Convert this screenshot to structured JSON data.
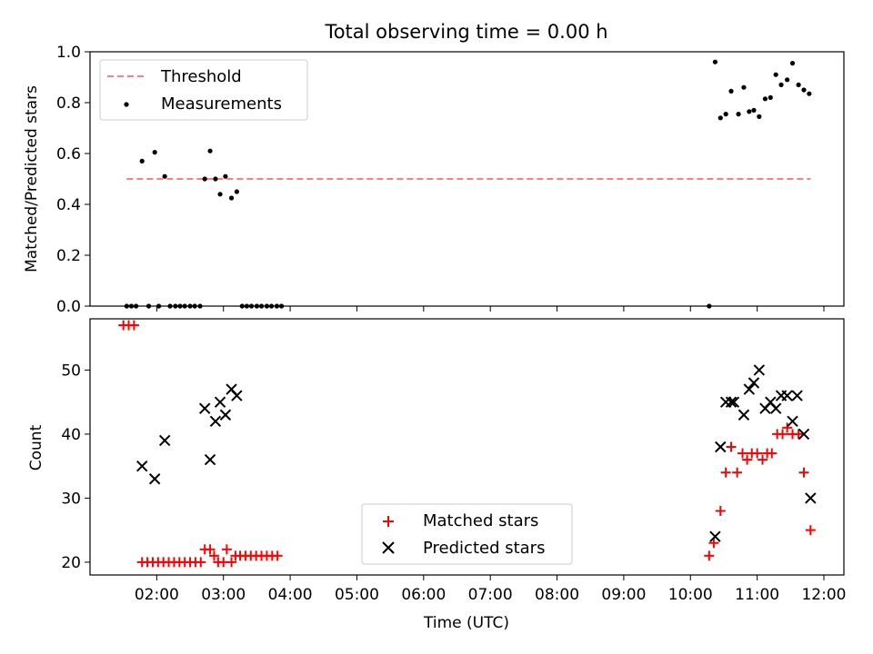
{
  "chart_data": [
    {
      "type": "scatter",
      "title": "Total observing time = 0.00 h",
      "ylabel": "Matched/Predicted stars",
      "ylim": [
        0,
        1
      ],
      "yticks": [
        "0.0",
        "0.2",
        "0.4",
        "0.6",
        "0.8",
        "1.0"
      ],
      "xlim_hours": [
        1.0,
        12.3
      ],
      "legend_position": "upper-left",
      "threshold": {
        "name": "Threshold",
        "value": 0.5,
        "x_start": 1.55,
        "x_end": 11.8,
        "color": "#ff7f7f"
      },
      "measurements": {
        "name": "Measurements",
        "color": "#000000",
        "points": [
          [
            1.55,
            0.0
          ],
          [
            1.62,
            0.0
          ],
          [
            1.69,
            0.0
          ],
          [
            1.78,
            0.57
          ],
          [
            1.88,
            0.0
          ],
          [
            1.97,
            0.605
          ],
          [
            2.03,
            0.0
          ],
          [
            2.12,
            0.51
          ],
          [
            2.2,
            0.0
          ],
          [
            2.28,
            0.0
          ],
          [
            2.35,
            0.0
          ],
          [
            2.42,
            0.0
          ],
          [
            2.5,
            0.0
          ],
          [
            2.57,
            0.0
          ],
          [
            2.65,
            0.0
          ],
          [
            2.72,
            0.5
          ],
          [
            2.8,
            0.61
          ],
          [
            2.88,
            0.5
          ],
          [
            2.95,
            0.44
          ],
          [
            3.03,
            0.51
          ],
          [
            3.12,
            0.425
          ],
          [
            3.2,
            0.45
          ],
          [
            3.28,
            0.0
          ],
          [
            3.35,
            0.0
          ],
          [
            3.42,
            0.0
          ],
          [
            3.5,
            0.0
          ],
          [
            3.57,
            0.0
          ],
          [
            3.65,
            0.0
          ],
          [
            3.72,
            0.0
          ],
          [
            3.8,
            0.0
          ],
          [
            3.87,
            0.0
          ],
          [
            10.28,
            0.0
          ],
          [
            10.37,
            0.96
          ],
          [
            10.45,
            0.74
          ],
          [
            10.53,
            0.755
          ],
          [
            10.61,
            0.845
          ],
          [
            10.72,
            0.755
          ],
          [
            10.8,
            0.86
          ],
          [
            10.88,
            0.765
          ],
          [
            10.95,
            0.77
          ],
          [
            11.03,
            0.745
          ],
          [
            11.12,
            0.815
          ],
          [
            11.2,
            0.82
          ],
          [
            11.28,
            0.91
          ],
          [
            11.36,
            0.87
          ],
          [
            11.45,
            0.89
          ],
          [
            11.53,
            0.955
          ],
          [
            11.62,
            0.87
          ],
          [
            11.7,
            0.85
          ],
          [
            11.78,
            0.835
          ]
        ]
      }
    },
    {
      "type": "scatter",
      "xlabel": "Time (UTC)",
      "ylabel": "Count",
      "ylim": [
        18,
        58
      ],
      "yticks": [
        "20",
        "30",
        "40",
        "50"
      ],
      "xlim_hours": [
        1.0,
        12.3
      ],
      "xticks": [
        "02:00",
        "03:00",
        "04:00",
        "05:00",
        "06:00",
        "07:00",
        "08:00",
        "09:00",
        "10:00",
        "11:00",
        "12:00"
      ],
      "legend_position": "lower-center",
      "series": [
        {
          "name": "Matched stars",
          "marker": "plus",
          "color": "#ff0000",
          "points": [
            [
              1.5,
              57
            ],
            [
              1.58,
              57
            ],
            [
              1.66,
              57
            ],
            [
              1.78,
              20
            ],
            [
              1.86,
              20
            ],
            [
              1.94,
              20
            ],
            [
              2.02,
              20
            ],
            [
              2.1,
              20
            ],
            [
              2.18,
              20
            ],
            [
              2.26,
              20
            ],
            [
              2.34,
              20
            ],
            [
              2.42,
              20
            ],
            [
              2.5,
              20
            ],
            [
              2.58,
              20
            ],
            [
              2.66,
              20
            ],
            [
              2.72,
              22
            ],
            [
              2.8,
              22
            ],
            [
              2.86,
              21
            ],
            [
              2.92,
              20
            ],
            [
              3.0,
              20
            ],
            [
              3.05,
              22
            ],
            [
              3.12,
              20
            ],
            [
              3.18,
              21
            ],
            [
              3.25,
              21
            ],
            [
              3.33,
              21
            ],
            [
              3.41,
              21
            ],
            [
              3.49,
              21
            ],
            [
              3.57,
              21
            ],
            [
              3.65,
              21
            ],
            [
              3.73,
              21
            ],
            [
              3.81,
              21
            ],
            [
              10.28,
              21
            ],
            [
              10.35,
              23
            ],
            [
              10.45,
              28
            ],
            [
              10.53,
              34
            ],
            [
              10.61,
              38
            ],
            [
              10.7,
              34
            ],
            [
              10.78,
              37
            ],
            [
              10.85,
              36
            ],
            [
              10.92,
              37
            ],
            [
              11.0,
              37
            ],
            [
              11.08,
              36
            ],
            [
              11.15,
              37
            ],
            [
              11.22,
              37
            ],
            [
              11.3,
              40
            ],
            [
              11.38,
              40
            ],
            [
              11.45,
              41
            ],
            [
              11.53,
              40
            ],
            [
              11.62,
              40
            ],
            [
              11.7,
              34
            ],
            [
              11.8,
              25
            ]
          ]
        },
        {
          "name": "Predicted stars",
          "marker": "x",
          "color": "#000000",
          "points": [
            [
              1.78,
              35
            ],
            [
              1.97,
              33
            ],
            [
              2.12,
              39
            ],
            [
              2.72,
              44
            ],
            [
              2.8,
              36
            ],
            [
              2.88,
              42
            ],
            [
              2.95,
              45
            ],
            [
              3.03,
              43
            ],
            [
              3.12,
              47
            ],
            [
              3.2,
              46
            ],
            [
              10.37,
              24
            ],
            [
              10.45,
              38
            ],
            [
              10.53,
              45
            ],
            [
              10.61,
              45
            ],
            [
              10.65,
              45
            ],
            [
              10.8,
              43
            ],
            [
              10.88,
              47
            ],
            [
              10.95,
              48
            ],
            [
              11.03,
              50
            ],
            [
              11.12,
              44
            ],
            [
              11.2,
              45
            ],
            [
              11.28,
              44
            ],
            [
              11.36,
              46
            ],
            [
              11.45,
              46
            ],
            [
              11.53,
              42
            ],
            [
              11.6,
              46
            ],
            [
              11.7,
              40
            ],
            [
              11.8,
              30
            ]
          ]
        }
      ]
    }
  ]
}
